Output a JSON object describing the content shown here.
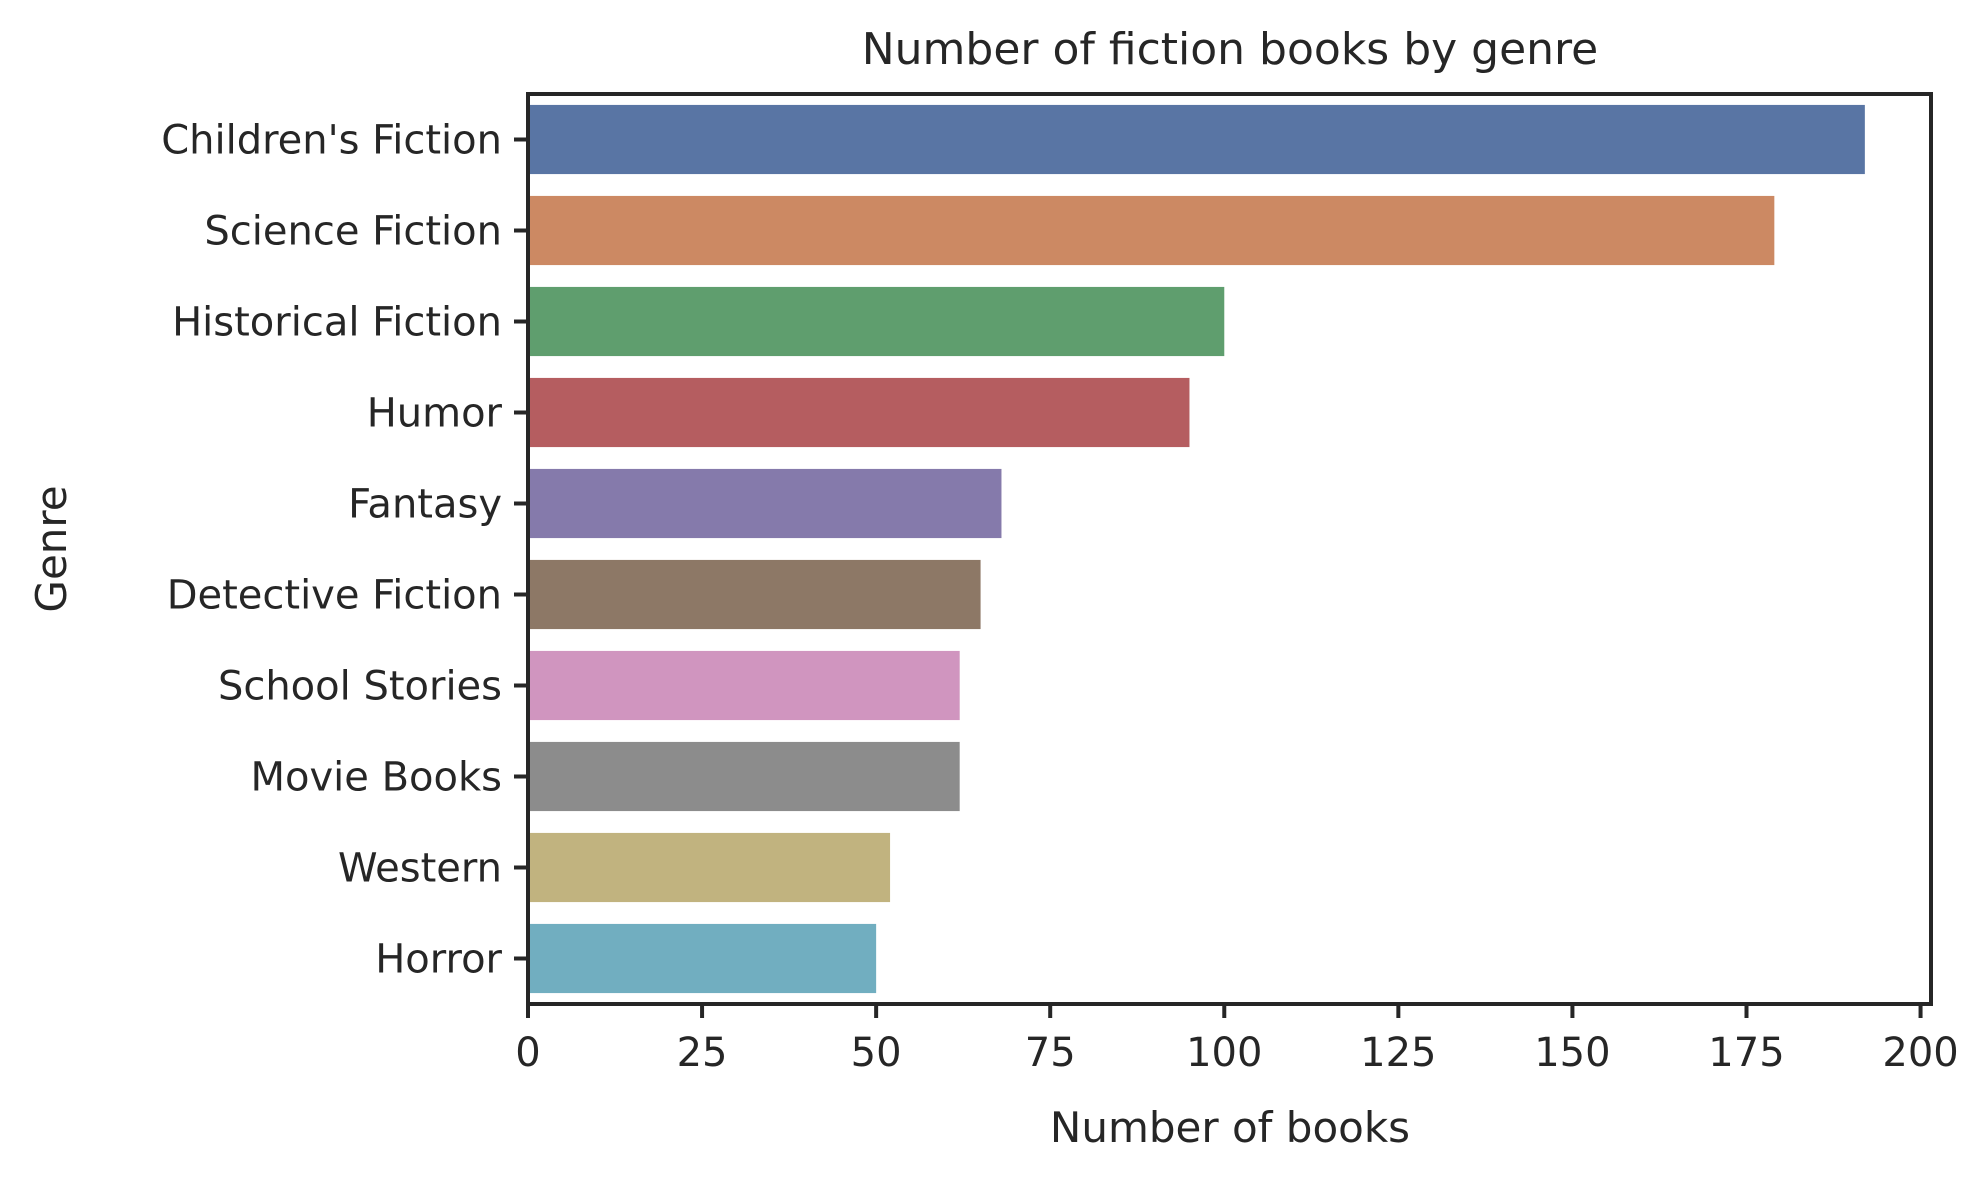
{
  "chart_data": {
    "type": "bar",
    "orientation": "horizontal",
    "title": "Number of fiction books by genre",
    "xlabel": "Number of books",
    "ylabel": "Genre",
    "xlim": [
      0,
      201.5
    ],
    "xticks": [
      0,
      25,
      50,
      75,
      100,
      125,
      150,
      175,
      200
    ],
    "categories": [
      "Children's Fiction",
      "Science Fiction",
      "Historical Fiction",
      "Humor",
      "Fantasy",
      "Detective Fiction",
      "School Stories",
      "Movie Books",
      "Western",
      "Horror"
    ],
    "values": [
      192,
      179,
      100,
      95,
      68,
      65,
      62,
      62,
      52,
      50
    ],
    "colors": [
      "#5975a4",
      "#cc8963",
      "#5f9e6e",
      "#b55d60",
      "#857aab",
      "#8d7866",
      "#d095bf",
      "#8c8c8c",
      "#c1b37f",
      "#71aec0"
    ],
    "grid": false,
    "legend": false
  }
}
